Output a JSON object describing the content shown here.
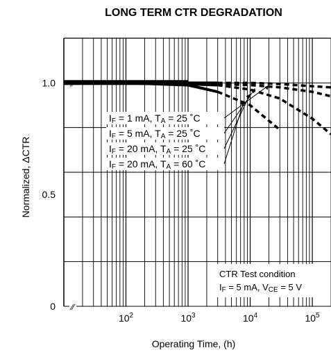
{
  "chart_data": {
    "type": "line",
    "title": "LONG TERM CTR DEGRADATION",
    "xlabel": "Operating Time, (h)",
    "ylabel": "Normalized, ΔCTR",
    "x_scale": "log",
    "y_ticks": [
      "0",
      "0.5",
      "1.0"
    ],
    "x_ticks": [
      {
        "base": "10",
        "exp": "2",
        "value": 100
      },
      {
        "base": "10",
        "exp": "3",
        "value": 1000
      },
      {
        "base": "10",
        "exp": "4",
        "value": 10000
      },
      {
        "base": "10",
        "exp": "5",
        "value": 100000
      }
    ],
    "grid": true,
    "axis_break": "∕∕",
    "series": [
      {
        "name": "IF = 1 mA, TA = 25 ˚C",
        "label": {
          "i": "I",
          "isub": "F",
          "ival": " = 1 mA, ",
          "t": "T",
          "tsub": "A",
          "tval": " = 25 ˚C"
        },
        "x": [
          10,
          100,
          1000,
          3000,
          10000,
          30000,
          100000,
          200000
        ],
        "y": [
          1.0,
          1.0,
          1.0,
          1.0,
          1.0,
          0.995,
          0.985,
          0.98
        ]
      },
      {
        "name": "IF = 5 mA, TA = 25 ˚C",
        "label": {
          "i": "I",
          "isub": "F",
          "ival": " = 5 mA, ",
          "t": "T",
          "tsub": "A",
          "tval": " = 25 ˚C"
        },
        "x": [
          10,
          100,
          1000,
          3000,
          10000,
          30000,
          100000,
          200000
        ],
        "y": [
          1.0,
          1.0,
          1.0,
          0.995,
          0.99,
          0.98,
          0.96,
          0.94
        ]
      },
      {
        "name": "IF = 20 mA, TA = 25 ˚C",
        "label": {
          "i": "I",
          "isub": "F",
          "ival": " = 20 mA, ",
          "t": "T",
          "tsub": "A",
          "tval": " = 25 ˚C"
        },
        "x": [
          10,
          100,
          1000,
          3000,
          10000,
          30000,
          100000,
          200000
        ],
        "y": [
          1.0,
          1.0,
          0.995,
          0.99,
          0.97,
          0.93,
          0.84,
          0.77
        ]
      },
      {
        "name": "IF = 20 mA, TA = 60 ˚C",
        "label": {
          "i": "I",
          "isub": "F",
          "ival": " = 20 mA, ",
          "t": "T",
          "tsub": "A",
          "tval": " = 60 ˚C"
        },
        "x": [
          10,
          100,
          1000,
          3000,
          10000,
          30000
        ],
        "y": [
          1.0,
          1.0,
          0.99,
          0.96,
          0.9,
          0.79
        ]
      }
    ],
    "test_condition": {
      "line1": "CTR Test condition",
      "i": "I",
      "isub": "F",
      "ival": " = 5 mA, ",
      "v": "V",
      "vsub": "CE",
      "vval": " = 5 V"
    }
  }
}
